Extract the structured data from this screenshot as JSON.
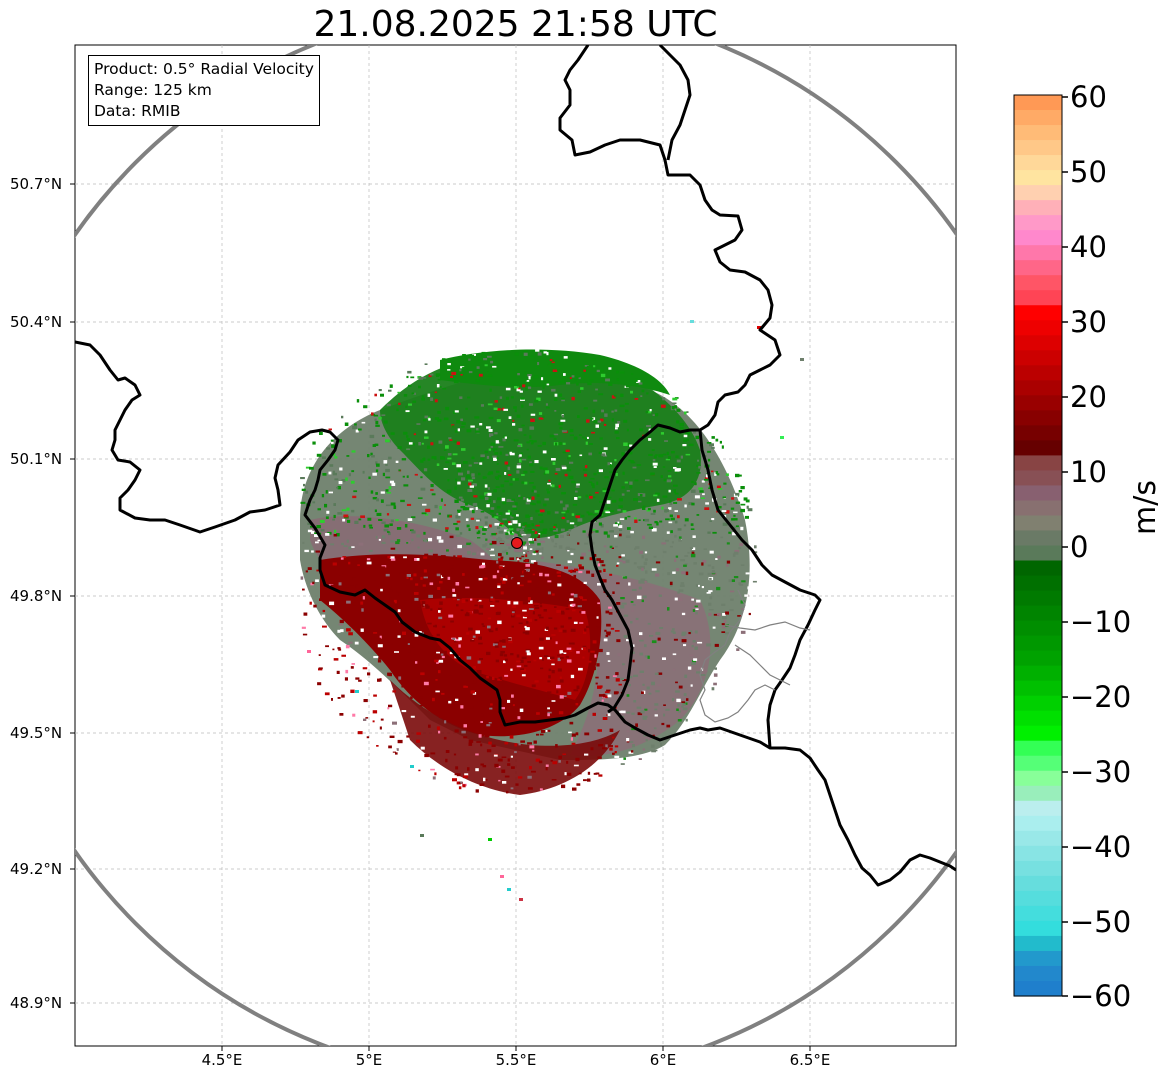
{
  "title": "21.08.2025 21:58 UTC",
  "info": {
    "product": "Product: 0.5° Radial Velocity",
    "range": "Range: 125 km",
    "data": "Data: RMIB"
  },
  "lat_labels": [
    "50.7°N",
    "50.4°N",
    "50.1°N",
    "49.8°N",
    "49.5°N",
    "49.2°N",
    "48.9°N"
  ],
  "lon_labels": [
    "4.5°E",
    "5°E",
    "5.5°E",
    "6°E",
    "6.5°E"
  ],
  "colorbar": {
    "label": "m/s",
    "ticks": [
      "60",
      "50",
      "40",
      "30",
      "20",
      "10",
      "0",
      "−10",
      "−20",
      "−30",
      "−40",
      "−50",
      "−60"
    ],
    "min": -60,
    "max": 60
  },
  "radar_site": {
    "lon": 5.5,
    "lat": 49.914
  },
  "colors": {
    "range_ring": "#808080",
    "border_country": "#000000",
    "border_region": "#808080",
    "site_marker": "#e41a1c",
    "approaching_green": "#008000",
    "receding_red": "#8b0000",
    "near_zero_gray": "#6b7a6b"
  }
}
